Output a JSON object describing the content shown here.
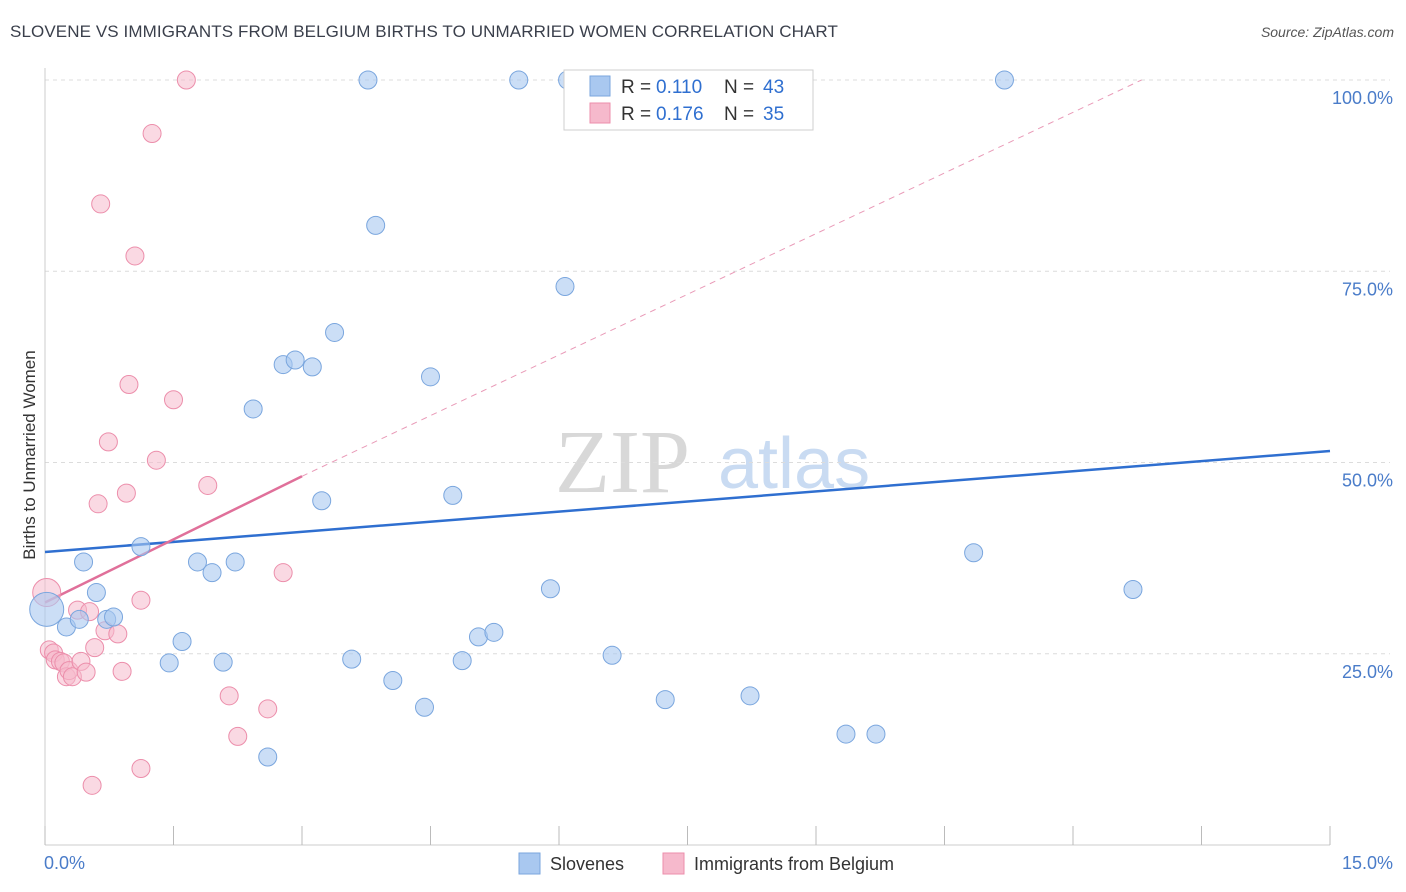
{
  "header": {
    "title": "SLOVENE VS IMMIGRANTS FROM BELGIUM BIRTHS TO UNMARRIED WOMEN CORRELATION CHART",
    "source": "Source: ZipAtlas.com"
  },
  "watermark": {
    "zip": "ZIP",
    "atlas": "atlas"
  },
  "legend": {
    "r_label": "R =",
    "n_label": "N =",
    "series": [
      {
        "r": "0.110",
        "n": "43"
      },
      {
        "r": "0.176",
        "n": "35"
      }
    ]
  },
  "colors": {
    "blue_fill": "#a9c8f0",
    "blue_stroke": "#7aa6de",
    "blue_line": "#2f6fd0",
    "pink_fill": "#f6b9cc",
    "pink_stroke": "#ec8eab",
    "pink_line": "#e0709a",
    "tick_text": "#4a7cc9"
  },
  "chart_data": {
    "type": "scatter",
    "title": "SLOVENE VS IMMIGRANTS FROM BELGIUM BIRTHS TO UNMARRIED WOMEN CORRELATION CHART",
    "xlabel": "",
    "ylabel": "Births to Unmarried Women",
    "xlim": [
      0,
      15
    ],
    "ylim": [
      0,
      100
    ],
    "x_tick_labels": [
      "0.0%",
      "15.0%"
    ],
    "y_ticks": [
      25,
      50,
      75,
      100
    ],
    "y_tick_labels": [
      "25.0%",
      "50.0%",
      "75.0%",
      "100.0%"
    ],
    "grid": true,
    "legend_position": "top-center",
    "series": [
      {
        "name": "Slovenes",
        "color": "#a9c8f0",
        "r": 0.11,
        "n": 43,
        "trend": {
          "x": [
            0,
            15
          ],
          "y": [
            38.3,
            51.5
          ],
          "style": "solid"
        },
        "points": [
          [
            0.02,
            30.8
          ],
          [
            0.25,
            28.5
          ],
          [
            0.4,
            29.5
          ],
          [
            0.45,
            37.0
          ],
          [
            0.6,
            33.0
          ],
          [
            0.72,
            29.5
          ],
          [
            0.8,
            29.8
          ],
          [
            1.12,
            39.0
          ],
          [
            1.45,
            23.8
          ],
          [
            1.6,
            26.6
          ],
          [
            1.78,
            37.0
          ],
          [
            1.95,
            35.6
          ],
          [
            2.08,
            23.9
          ],
          [
            2.22,
            37.0
          ],
          [
            2.43,
            57.0
          ],
          [
            2.6,
            11.5
          ],
          [
            2.78,
            62.8
          ],
          [
            2.92,
            63.4
          ],
          [
            3.12,
            62.5
          ],
          [
            3.23,
            45.0
          ],
          [
            3.38,
            67.0
          ],
          [
            3.58,
            24.3
          ],
          [
            3.77,
            100.0
          ],
          [
            3.86,
            81.0
          ],
          [
            4.06,
            21.5
          ],
          [
            4.43,
            18.0
          ],
          [
            4.5,
            61.2
          ],
          [
            4.76,
            45.7
          ],
          [
            4.87,
            24.1
          ],
          [
            5.06,
            27.2
          ],
          [
            5.24,
            27.8
          ],
          [
            5.53,
            100.0
          ],
          [
            5.9,
            33.5
          ],
          [
            6.07,
            73.0
          ],
          [
            6.1,
            100.0
          ],
          [
            6.62,
            24.8
          ],
          [
            7.24,
            19.0
          ],
          [
            8.23,
            19.5
          ],
          [
            9.35,
            14.5
          ],
          [
            9.7,
            14.5
          ],
          [
            10.84,
            38.2
          ],
          [
            11.2,
            100.0
          ],
          [
            12.7,
            33.4
          ]
        ]
      },
      {
        "name": "Immigrants from Belgium",
        "color": "#f6b9cc",
        "r": 0.176,
        "n": 35,
        "trend": {
          "x": [
            0,
            3.0
          ],
          "y": [
            31.7,
            48.2
          ],
          "style": "solid",
          "extended_dashed_to": [
            12.8,
            100.0
          ]
        },
        "points": [
          [
            0.02,
            33.0
          ],
          [
            0.05,
            25.5
          ],
          [
            0.1,
            25.1
          ],
          [
            0.12,
            24.2
          ],
          [
            0.18,
            24.0
          ],
          [
            0.22,
            23.8
          ],
          [
            0.25,
            22.0
          ],
          [
            0.28,
            22.8
          ],
          [
            0.32,
            22.0
          ],
          [
            0.38,
            30.7
          ],
          [
            0.42,
            24.0
          ],
          [
            0.48,
            22.6
          ],
          [
            0.52,
            30.5
          ],
          [
            0.58,
            25.8
          ],
          [
            0.62,
            44.6
          ],
          [
            0.65,
            83.8
          ],
          [
            0.7,
            28.0
          ],
          [
            0.74,
            52.7
          ],
          [
            0.85,
            27.6
          ],
          [
            0.9,
            22.7
          ],
          [
            0.95,
            46.0
          ],
          [
            0.98,
            60.2
          ],
          [
            1.12,
            32.0
          ],
          [
            1.12,
            10.0
          ],
          [
            1.25,
            93.0
          ],
          [
            1.3,
            50.3
          ],
          [
            1.5,
            58.2
          ],
          [
            1.65,
            100.0
          ],
          [
            1.05,
            77.0
          ],
          [
            1.9,
            47.0
          ],
          [
            2.15,
            19.5
          ],
          [
            2.25,
            14.2
          ],
          [
            2.6,
            17.8
          ],
          [
            2.78,
            35.6
          ],
          [
            0.55,
            7.8
          ]
        ]
      }
    ]
  },
  "bottom_legend": [
    {
      "label": "Slovenes"
    },
    {
      "label": "Immigrants from Belgium"
    }
  ]
}
